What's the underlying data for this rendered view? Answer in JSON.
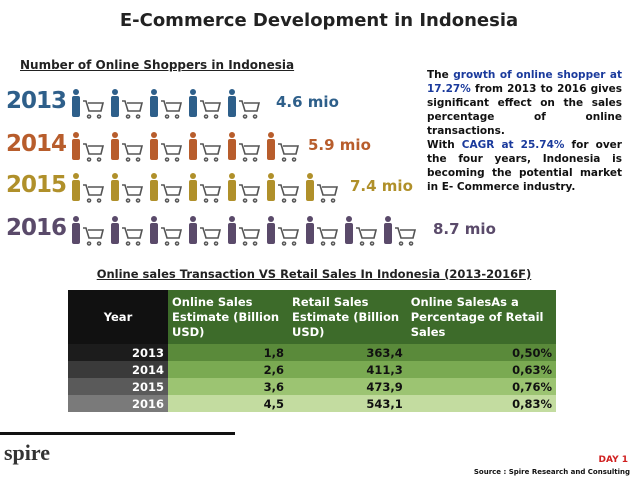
{
  "title": "E-Commerce Development in Indonesia",
  "shoppers": {
    "title": "Number of Online Shoppers in Indonesia",
    "rows": [
      {
        "year": "2013",
        "label": "4.6 mio"
      },
      {
        "year": "2014",
        "label": "5.9 mio"
      },
      {
        "year": "2015",
        "label": "7.4 mio"
      },
      {
        "year": "2016",
        "label": "8.7 mio"
      }
    ]
  },
  "description": [
    "The ",
    "growth of online shopper at 17.27%",
    " from 2013 to 2016 gives significant effect on the sales percentage of online transactions.",
    "With ",
    "CAGR at 25.74%",
    " for over the four years, Indonesia is becoming the potential market in E- Commerce industry."
  ],
  "table": {
    "title": "Online sales Transaction VS Retail Sales In Indonesia (2013-2016F)",
    "header": [
      "Year",
      "Online Sales Estimate (Billion USD)",
      "Retail Sales Estimate (Billion USD)",
      "Online SalesAs a Percentage of Retail Sales"
    ],
    "rows": [
      [
        "2013",
        "1,8",
        "363,4",
        "0,50%"
      ],
      [
        "2014",
        "2,6",
        "411,3",
        "0,63%"
      ],
      [
        "2015",
        "3,6",
        "473,9",
        "0,76%"
      ],
      [
        "2016",
        "4,5",
        "543,1",
        "0,83%"
      ]
    ]
  },
  "footer": {
    "logo": "spire",
    "day": "DAY 1",
    "source": "Source : Spire Research and Consulting"
  }
}
